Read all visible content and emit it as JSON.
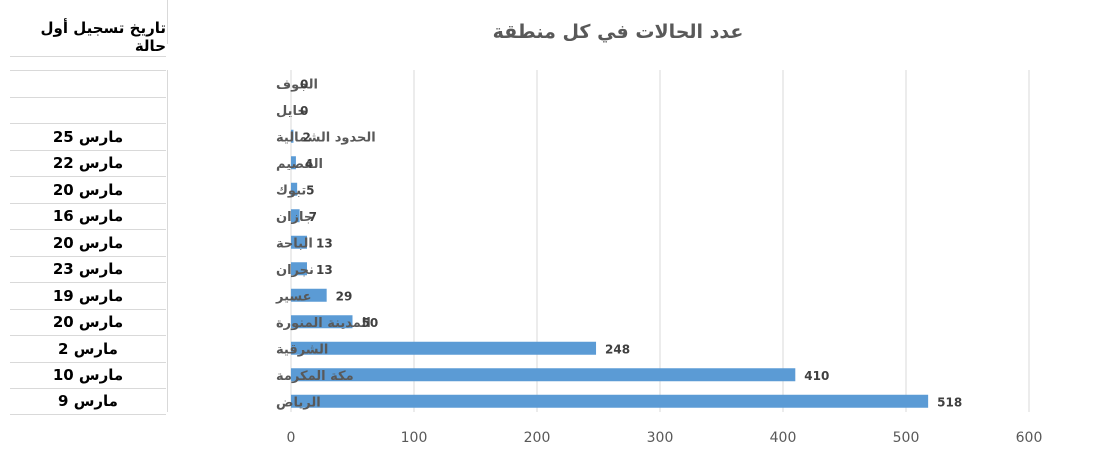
{
  "side_table": {
    "header": "تاريخ تسجيل أول حالة",
    "dates": [
      "",
      "",
      "مارس 25",
      "مارس 22",
      "مارس 20",
      "مارس 16",
      "مارس 20",
      "مارس 23",
      "مارس 19",
      "مارس 20",
      "مارس 2",
      "مارس 10",
      "مارس 9"
    ]
  },
  "chart_data": {
    "type": "bar",
    "orientation": "horizontal",
    "title": "عدد الحالات في كل منطقة",
    "categories": [
      "الجوف",
      "حايل",
      "الحدود الشمالية",
      "القصيم",
      "تبوك",
      "جازان",
      "الباحة",
      "نجران",
      "عسير",
      "المدينة المنورة",
      "الشرقية",
      "مكة المكرمة",
      "الرياض"
    ],
    "values": [
      0,
      0,
      2,
      4,
      5,
      7,
      13,
      13,
      29,
      50,
      248,
      410,
      518
    ],
    "xlim": [
      0,
      600
    ],
    "xticks": [
      0,
      100,
      200,
      300,
      400,
      500,
      600
    ],
    "grid": true,
    "colors": {
      "bar": "#5b9bd5",
      "grid": "#d9d9d9"
    }
  }
}
